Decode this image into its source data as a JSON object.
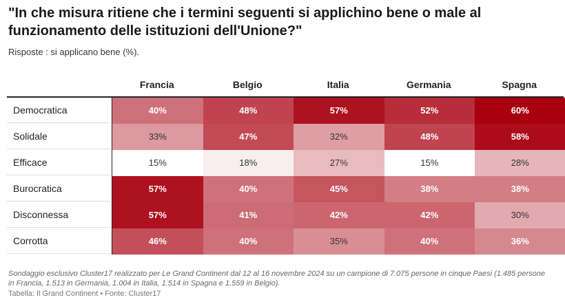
{
  "header": {
    "title": "\"In che misura ritiene che i termini seguenti si applichino bene o male al funzionamento delle istituzioni dell'Unione?\"",
    "subtitle": "Risposte : si applicano bene (%)."
  },
  "chart_data": {
    "type": "heatmap",
    "columns": [
      "Francia",
      "Belgio",
      "Italia",
      "Germania",
      "Spagna"
    ],
    "rows": [
      {
        "label": "Democratica",
        "values": [
          40,
          48,
          57,
          52,
          60
        ],
        "display": [
          "40%",
          "48%",
          "57%",
          "52%",
          "60%"
        ]
      },
      {
        "label": "Solidale",
        "values": [
          33,
          47,
          32,
          48,
          58
        ],
        "display": [
          "33%",
          "47%",
          "32%",
          "48%",
          "58%"
        ]
      },
      {
        "label": "Efficace",
        "values": [
          15,
          18,
          27,
          15,
          28
        ],
        "display": [
          "15%",
          "18%",
          "27%",
          "15%",
          "28%"
        ]
      },
      {
        "label": "Burocratica",
        "values": [
          57,
          40,
          45,
          38,
          38
        ],
        "display": [
          "57%",
          "40%",
          "45%",
          "38%",
          "38%"
        ]
      },
      {
        "label": "Disconnessa",
        "values": [
          57,
          41,
          42,
          42,
          30
        ],
        "display": [
          "57%",
          "41%",
          "42%",
          "42%",
          "30%"
        ]
      },
      {
        "label": "Corrotta",
        "values": [
          46,
          40,
          35,
          40,
          36
        ],
        "display": [
          "46%",
          "40%",
          "35%",
          "40%",
          "36%"
        ]
      }
    ],
    "color_scale": {
      "min": 15,
      "max": 60,
      "low_color": "#ffffff",
      "high_color": "#a8000f"
    }
  },
  "footer": {
    "note": "Sondaggio esclusivo Cluster17 realizzato per Le Grand Continent dal 12 al 16 novembre 2024 su un campione di 7.075 persone in cinque Paesi (1.485 persone in Francia, 1.513 in Germania, 1.004 in Italia, 1.514 in Spagna e 1.559 in Belgio).",
    "source": "Tabella: Il Grand Continent • Fonte: Cluster17"
  }
}
